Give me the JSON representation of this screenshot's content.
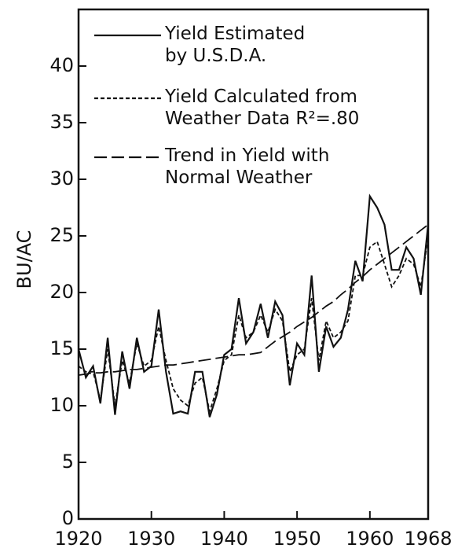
{
  "chart_data": {
    "type": "line",
    "y_label": "BU/AC",
    "x": [
      1920,
      1921,
      1922,
      1923,
      1924,
      1925,
      1926,
      1927,
      1928,
      1929,
      1930,
      1931,
      1932,
      1933,
      1934,
      1935,
      1936,
      1937,
      1938,
      1939,
      1940,
      1941,
      1942,
      1943,
      1944,
      1945,
      1946,
      1947,
      1948,
      1949,
      1950,
      1951,
      1952,
      1953,
      1954,
      1955,
      1956,
      1957,
      1958,
      1959,
      1960,
      1961,
      1962,
      1963,
      1964,
      1965,
      1966,
      1967,
      1968
    ],
    "series": [
      {
        "name": "Yield Estimated\nby U.S.D.A.",
        "color": "#111111",
        "dash": "solid",
        "values": [
          15,
          12.5,
          13.5,
          10.2,
          16,
          9.2,
          14.8,
          11.5,
          16,
          13,
          13.5,
          18.5,
          13,
          9.3,
          9.5,
          9.3,
          13,
          13,
          9,
          11,
          14.5,
          15,
          19.5,
          15.5,
          16.5,
          19,
          16,
          19.2,
          18,
          11.8,
          15.5,
          14.5,
          21.5,
          13,
          17,
          15.2,
          16,
          18.5,
          22.8,
          21,
          28.5,
          27.5,
          26,
          22,
          22,
          24,
          23,
          19.8,
          26
        ]
      },
      {
        "name": "Yield Calculated from\nWeather Data R²=.80",
        "color": "#111111",
        "dash": "dotted",
        "values": [
          13.5,
          13,
          13,
          10.5,
          15,
          10,
          14,
          12,
          15.5,
          13.5,
          14,
          17,
          14,
          11.5,
          10.5,
          10,
          12,
          12.5,
          9.5,
          11.5,
          14,
          14.5,
          18,
          16,
          16.5,
          18,
          16.5,
          18.5,
          17.5,
          13,
          14.5,
          15,
          19.5,
          14,
          17.5,
          16,
          16.5,
          17.5,
          21.5,
          21.5,
          24,
          24.5,
          22.5,
          20.5,
          21.5,
          23,
          22.5,
          20.5,
          25
        ]
      },
      {
        "name": "Trend in Yield with\nNormal Weather",
        "color": "#111111",
        "dash": "dashed",
        "values": [
          12.7,
          12.8,
          12.9,
          12.9,
          13.0,
          13.0,
          13.1,
          13.2,
          13.2,
          13.3,
          13.4,
          13.5,
          13.6,
          13.6,
          13.7,
          13.8,
          13.9,
          14.0,
          14.1,
          14.2,
          14.3,
          14.4,
          14.5,
          14.5,
          14.6,
          14.7,
          15.2,
          15.7,
          16.1,
          16.5,
          17.0,
          17.4,
          17.8,
          18.3,
          18.8,
          19.2,
          19.8,
          20.3,
          20.9,
          21.4,
          22.0,
          22.5,
          23.0,
          23.5,
          24.0,
          24.5,
          25.0,
          25.5,
          26.0
        ]
      }
    ],
    "xlim": [
      1920,
      1968
    ],
    "xticks": [
      1920,
      1930,
      1940,
      1950,
      1960,
      1968
    ],
    "ylim": [
      0,
      45
    ],
    "yticks": [
      0,
      5,
      10,
      15,
      20,
      25,
      30,
      35,
      40
    ],
    "legend": "top-right"
  }
}
